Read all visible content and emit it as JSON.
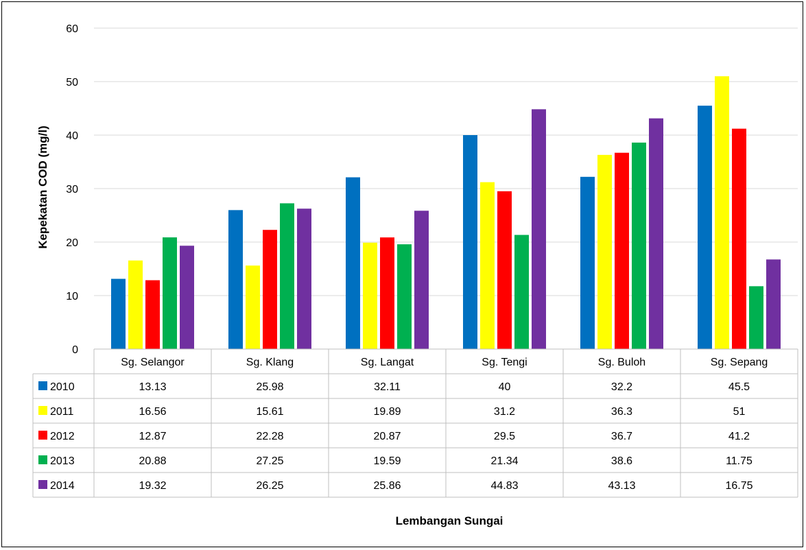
{
  "chart_data": {
    "type": "bar",
    "title": "",
    "xlabel": "Lembangan Sungai",
    "ylabel": "Kepekatan COD (mg/l)",
    "ylim": [
      0,
      60
    ],
    "yticks": [
      0,
      10,
      20,
      30,
      40,
      50,
      60
    ],
    "grid": true,
    "legend": "data-table-left",
    "categories": [
      "Sg. Selangor",
      "Sg. Klang",
      "Sg. Langat",
      "Sg. Tengi",
      "Sg. Buloh",
      "Sg. Sepang"
    ],
    "series": [
      {
        "name": "2010",
        "color": "#0070C0",
        "values": [
          13.13,
          25.98,
          32.11,
          40,
          32.2,
          45.5
        ],
        "labels": [
          "13.13",
          "25.98",
          "32.11",
          "40",
          "32.2",
          "45.5"
        ]
      },
      {
        "name": "2011",
        "color": "#FFFF00",
        "values": [
          16.56,
          15.61,
          19.89,
          31.2,
          36.3,
          51
        ],
        "labels": [
          "16.56",
          "15.61",
          "19.89",
          "31.2",
          "36.3",
          "51"
        ]
      },
      {
        "name": "2012",
        "color": "#FF0000",
        "values": [
          12.87,
          22.28,
          20.87,
          29.5,
          36.7,
          41.2
        ],
        "labels": [
          "12.87",
          "22.28",
          "20.87",
          "29.5",
          "36.7",
          "41.2"
        ]
      },
      {
        "name": "2013",
        "color": "#00B050",
        "values": [
          20.88,
          27.25,
          19.59,
          21.34,
          38.6,
          11.75
        ],
        "labels": [
          "20.88",
          "27.25",
          "19.59",
          "21.34",
          "38.6",
          "11.75"
        ]
      },
      {
        "name": "2014",
        "color": "#7030A0",
        "values": [
          19.32,
          26.25,
          25.86,
          44.83,
          43.13,
          16.75
        ],
        "labels": [
          "19.32",
          "26.25",
          "25.86",
          "44.83",
          "43.13",
          "16.75"
        ]
      }
    ]
  }
}
